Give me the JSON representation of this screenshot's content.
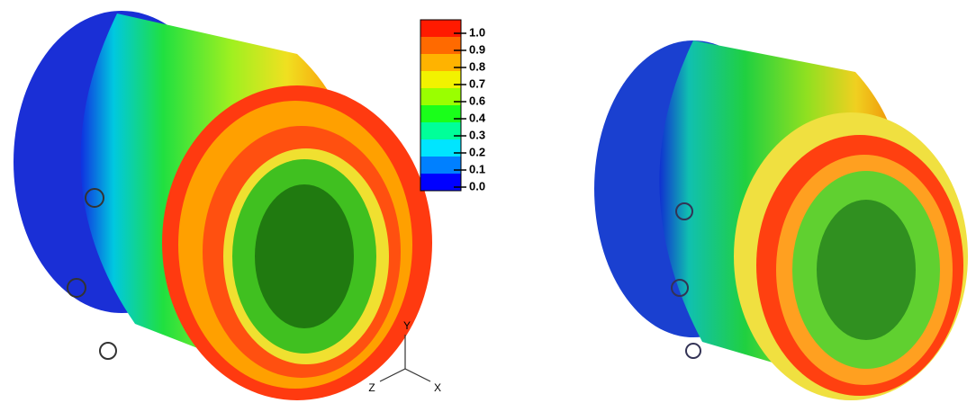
{
  "colorbar": {
    "levels": [
      {
        "label": "1.0",
        "color": "#ff1a00"
      },
      {
        "label": "0.9",
        "color": "#ff6a00"
      },
      {
        "label": "0.8",
        "color": "#ffb300"
      },
      {
        "label": "0.7",
        "color": "#f2f200"
      },
      {
        "label": "0.6",
        "color": "#9aff00"
      },
      {
        "label": "0.4",
        "color": "#1aff1a"
      },
      {
        "label": "0.3",
        "color": "#00ff99"
      },
      {
        "label": "0.2",
        "color": "#00e5ff"
      },
      {
        "label": "0.1",
        "color": "#0080ff"
      },
      {
        "label": "0.0",
        "color": "#0000ff"
      }
    ]
  },
  "triad": {
    "y": "Y",
    "z": "Z",
    "x": "X"
  }
}
